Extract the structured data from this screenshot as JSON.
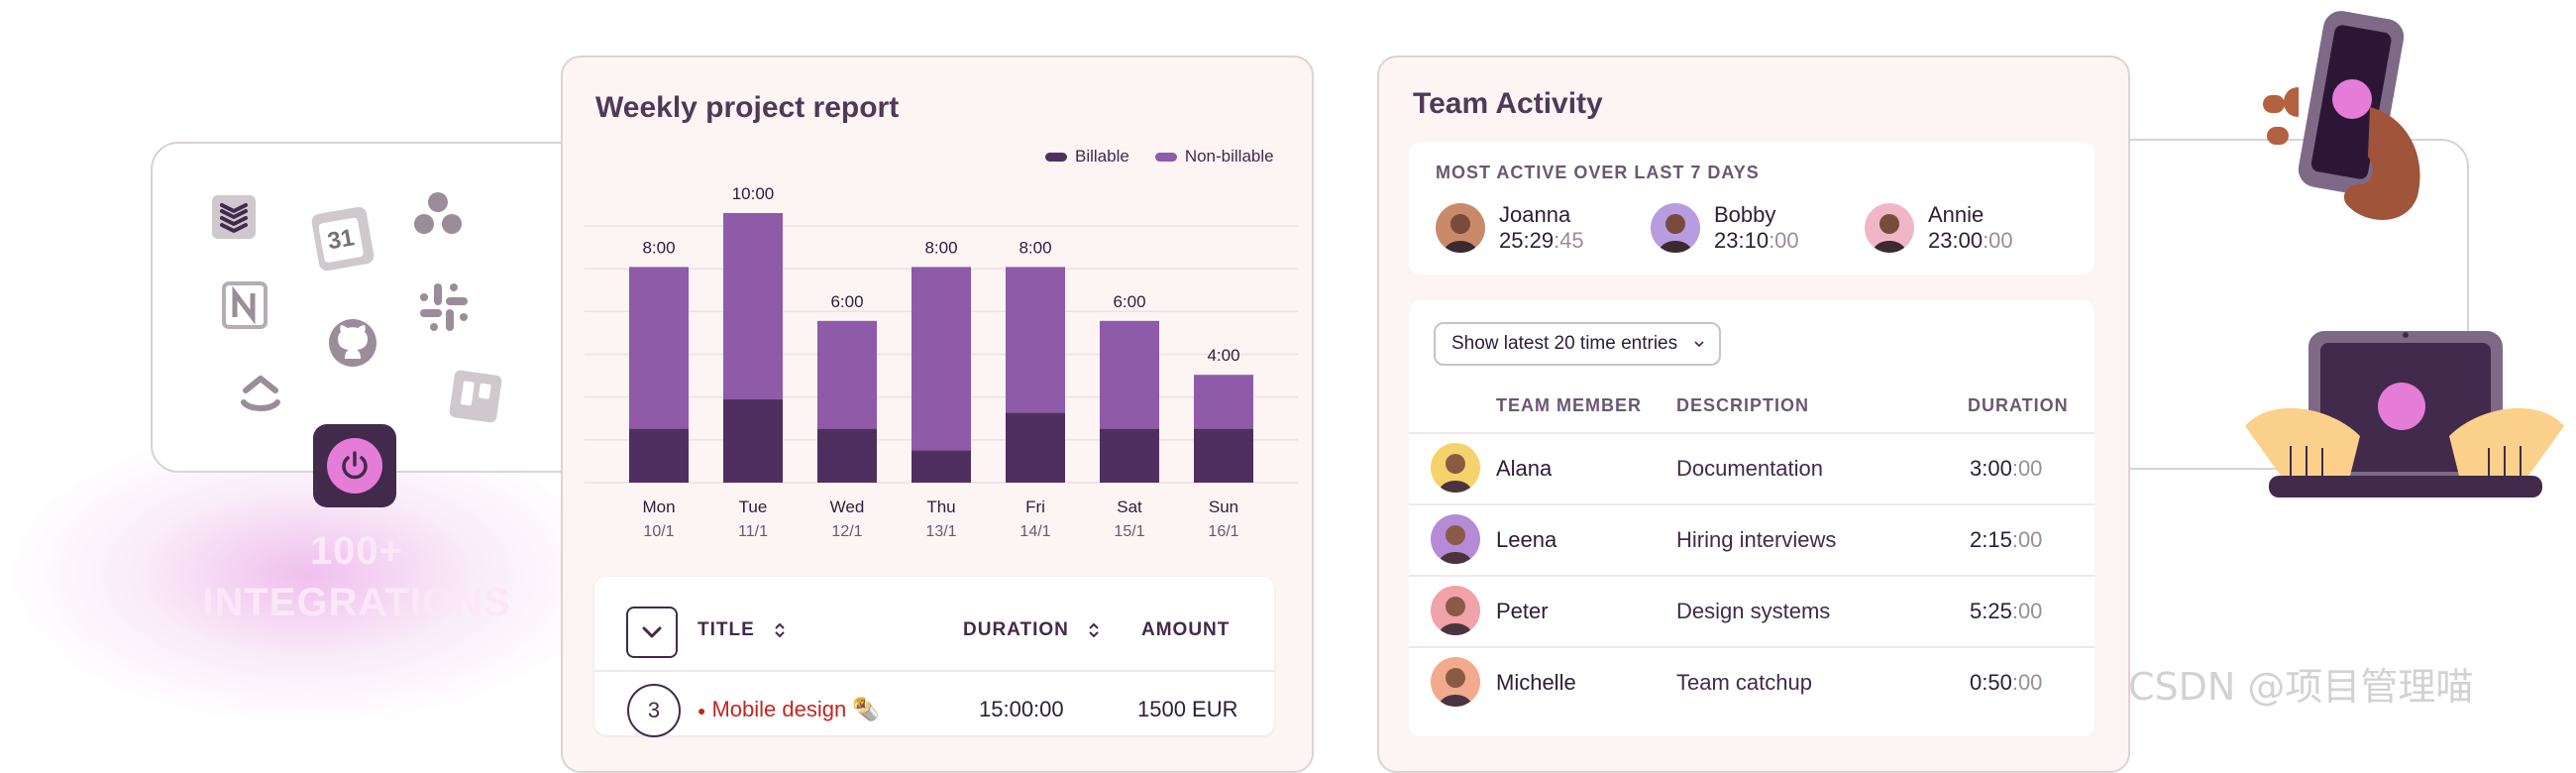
{
  "integrations": {
    "label_line1": "100+",
    "label_line2": "INTEGRATIONS",
    "calendar_day": "31",
    "icons": [
      "stack-icon",
      "calendar-icon",
      "asana-icon",
      "notion-icon",
      "slack-icon",
      "github-icon",
      "clickup-icon",
      "trello-icon"
    ]
  },
  "report": {
    "title": "Weekly project report",
    "legend": {
      "billable": "Billable",
      "non_billable": "Non-billable"
    },
    "colors": {
      "billable": "#4f2f5f",
      "non_billable": "#8f5aa8"
    }
  },
  "chart_data": {
    "type": "bar",
    "stacked": true,
    "categories": [
      "Mon",
      "Tue",
      "Wed",
      "Thu",
      "Fri",
      "Sat",
      "Sun"
    ],
    "dates": [
      "10/1",
      "11/1",
      "12/1",
      "13/1",
      "14/1",
      "15/1",
      "16/1"
    ],
    "total_labels": [
      "8:00",
      "10:00",
      "6:00",
      "8:00",
      "8:00",
      "6:00",
      "4:00"
    ],
    "series": [
      {
        "name": "Billable",
        "values": [
          2,
          3.1,
          2,
          1.2,
          2.6,
          2,
          2
        ]
      },
      {
        "name": "Non-billable",
        "values": [
          6,
          6.9,
          4,
          6.8,
          5.4,
          4,
          2
        ]
      }
    ],
    "ylim": [
      0,
      10
    ],
    "grid": true,
    "legend_position": "top-right"
  },
  "project_table": {
    "headers": {
      "title": "TITLE",
      "duration": "DURATION",
      "amount": "AMOUNT"
    },
    "rows": [
      {
        "count": "3",
        "title": "Mobile design 🌯",
        "duration": "15:00:00",
        "amount": "1500 EUR",
        "color": "#c0261e"
      }
    ]
  },
  "team": {
    "title": "Team Activity",
    "most_active_heading": "MOST ACTIVE OVER LAST 7 DAYS",
    "most_active": [
      {
        "name": "Joanna",
        "time_main": "25:29",
        "time_dim": ":45",
        "avatar_bg": "#c98a6a"
      },
      {
        "name": "Bobby",
        "time_main": "23:10",
        "time_dim": ":00",
        "avatar_bg": "#b89ce0"
      },
      {
        "name": "Annie",
        "time_main": "23:00",
        "time_dim": ":00",
        "avatar_bg": "#f0b6c6"
      }
    ],
    "filter_label": "Show latest 20 time entries",
    "headers": {
      "member": "TEAM MEMBER",
      "description": "DESCRIPTION",
      "duration": "DURATION"
    },
    "entries": [
      {
        "name": "Alana",
        "description": "Documentation",
        "dur_main": "3:00",
        "dur_dim": ":00",
        "avatar_bg": "#f5d36a"
      },
      {
        "name": "Leena",
        "description": "Hiring interviews",
        "dur_main": "2:15",
        "dur_dim": ":00",
        "avatar_bg": "#b58ad6"
      },
      {
        "name": "Peter",
        "description": "Design systems",
        "dur_main": "5:25",
        "dur_dim": ":00",
        "avatar_bg": "#f0a3a8"
      },
      {
        "name": "Michelle",
        "description": "Team catchup",
        "dur_main": "0:50",
        "dur_dim": ":00",
        "avatar_bg": "#f2a98c"
      }
    ]
  },
  "watermark": "CSDN @项目管理喵"
}
